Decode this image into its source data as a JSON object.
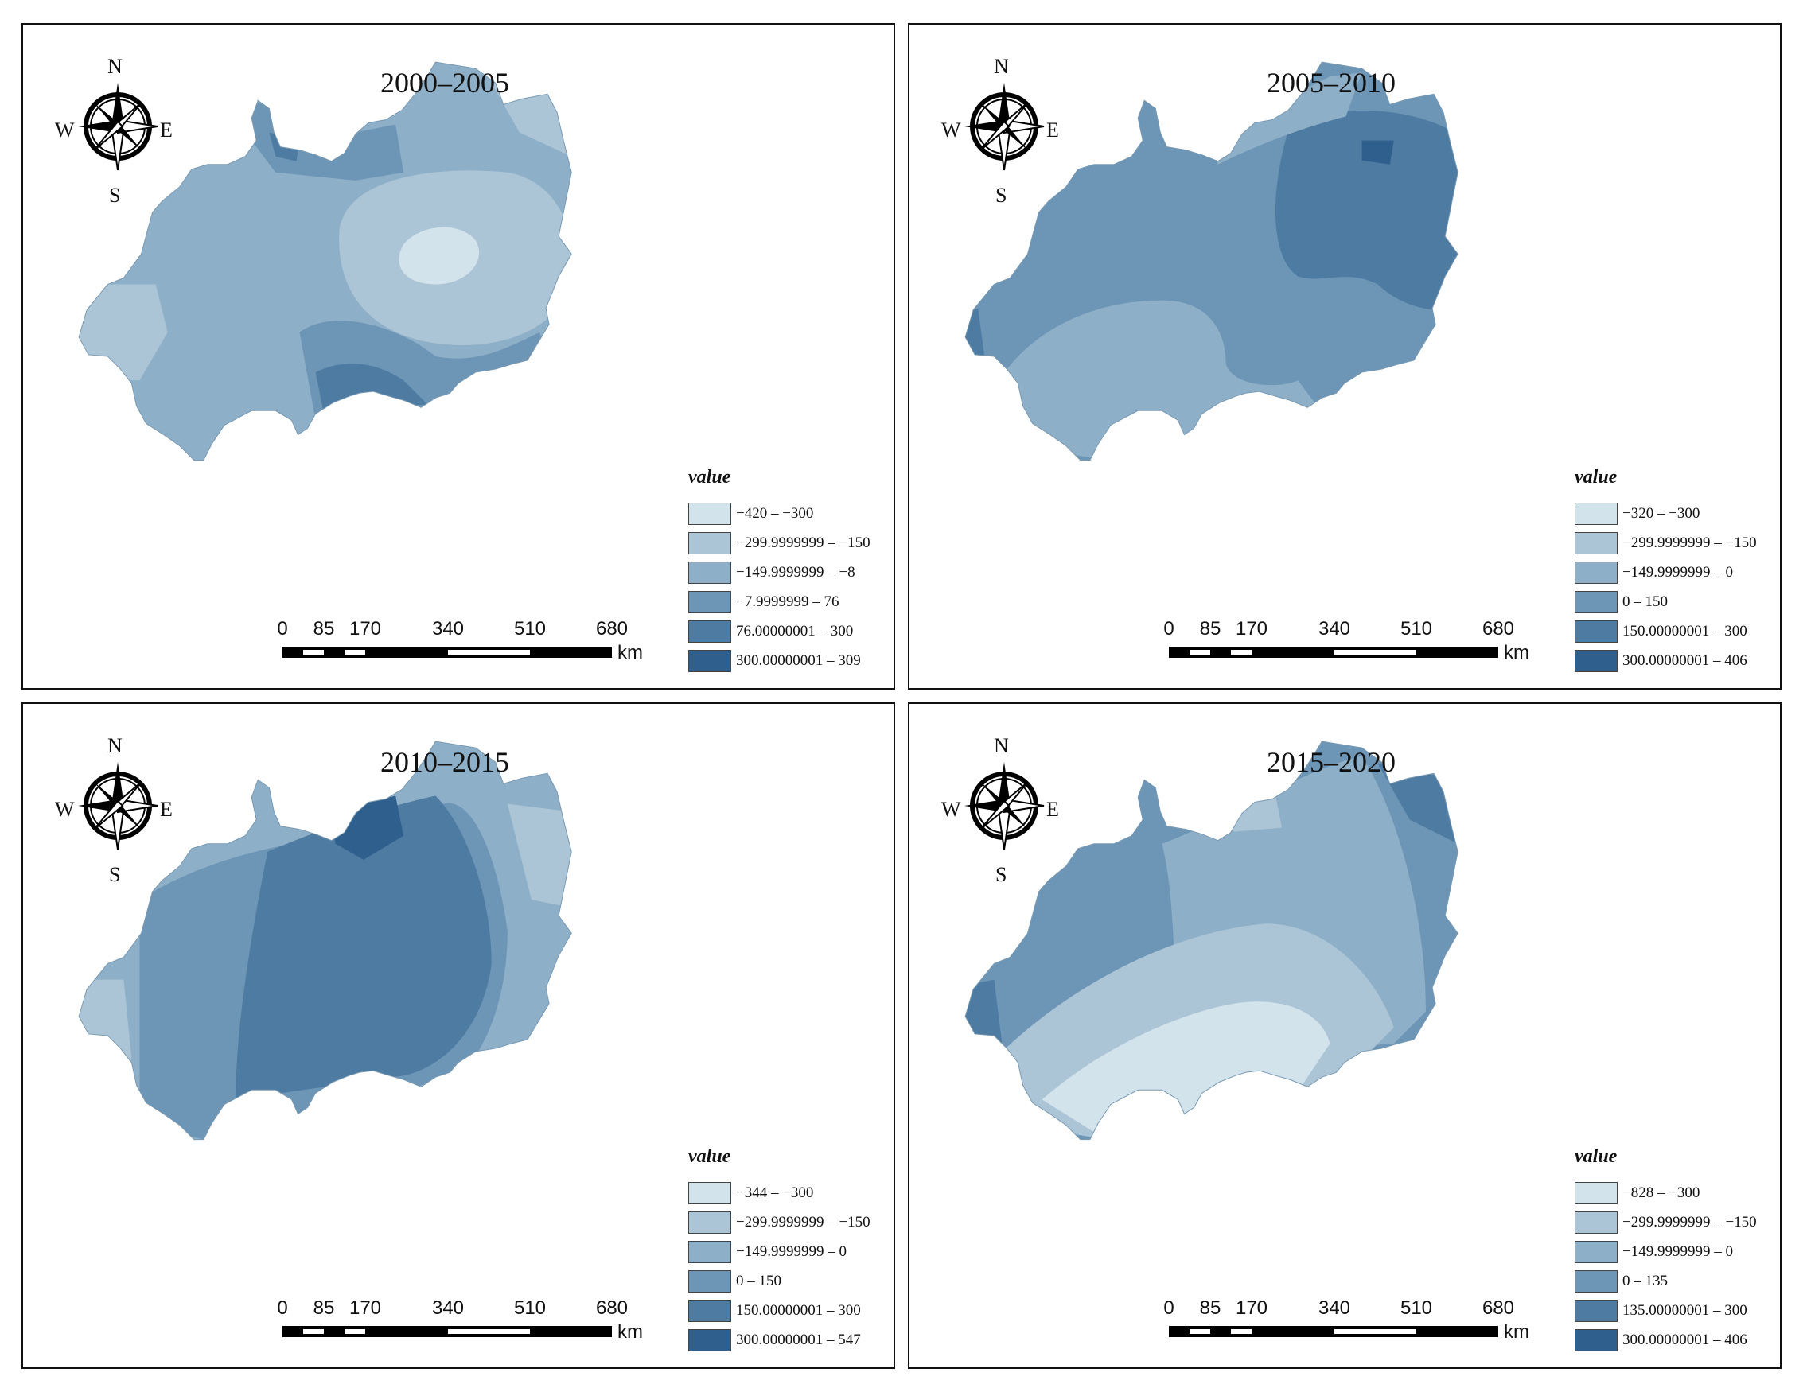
{
  "legend_title": "value",
  "compass": {
    "n": "N",
    "s": "S",
    "w": "W",
    "e": "E",
    "icon": "compass-rose-icon"
  },
  "scale": {
    "ticks": [
      "0",
      "85",
      "170",
      "340",
      "510",
      "680"
    ],
    "unit": "km"
  },
  "palette": {
    "c1": "#d3e3eb",
    "c2": "#abc4d6",
    "c3": "#8dafc7",
    "c4": "#6d95b6",
    "c5": "#4e7ba2",
    "c6": "#2f5f8d"
  },
  "panels": [
    {
      "title": "2000–2005",
      "legend": [
        {
          "label": "−420 – −300",
          "color": "#d3e3eb"
        },
        {
          "label": "−299.9999999 – −150",
          "color": "#abc4d6"
        },
        {
          "label": "−149.9999999 – −8",
          "color": "#8dafc7"
        },
        {
          "label": "−7.9999999 – 76",
          "color": "#6d95b6"
        },
        {
          "label": "76.00000001 – 300",
          "color": "#4e7ba2"
        },
        {
          "label": "300.00000001 – 309",
          "color": "#2f5f8d"
        }
      ]
    },
    {
      "title": "2005–2010",
      "legend": [
        {
          "label": "−320 – −300",
          "color": "#d3e3eb"
        },
        {
          "label": "−299.9999999 – −150",
          "color": "#abc4d6"
        },
        {
          "label": "−149.9999999 – 0",
          "color": "#8dafc7"
        },
        {
          "label": "0 – 150",
          "color": "#6d95b6"
        },
        {
          "label": "150.00000001 – 300",
          "color": "#4e7ba2"
        },
        {
          "label": "300.00000001 – 406",
          "color": "#2f5f8d"
        }
      ]
    },
    {
      "title": "2010–2015",
      "legend": [
        {
          "label": "−344 – −300",
          "color": "#d3e3eb"
        },
        {
          "label": "−299.9999999 – −150",
          "color": "#abc4d6"
        },
        {
          "label": "−149.9999999 – 0",
          "color": "#8dafc7"
        },
        {
          "label": "0 – 150",
          "color": "#6d95b6"
        },
        {
          "label": "150.00000001 – 300",
          "color": "#4e7ba2"
        },
        {
          "label": "300.00000001 – 547",
          "color": "#2f5f8d"
        }
      ]
    },
    {
      "title": "2015–2020",
      "legend": [
        {
          "label": "−828 – −300",
          "color": "#d3e3eb"
        },
        {
          "label": "−299.9999999 – −150",
          "color": "#abc4d6"
        },
        {
          "label": "−149.9999999 – 0",
          "color": "#8dafc7"
        },
        {
          "label": "0 – 135",
          "color": "#6d95b6"
        },
        {
          "label": "135.00000001 – 300",
          "color": "#4e7ba2"
        },
        {
          "label": "300.00000001 – 406",
          "color": "#2f5f8d"
        }
      ]
    }
  ]
}
